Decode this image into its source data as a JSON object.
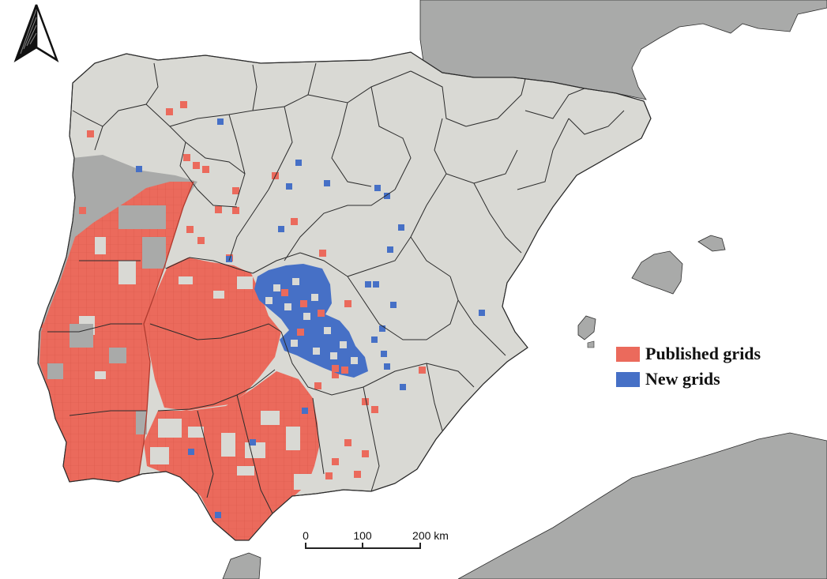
{
  "colors": {
    "sea": "#ffffff",
    "land": "#d9d9d4",
    "foreign_land": "#a9aaa9",
    "border": "#2b2b2b",
    "published": "#eb6a5c",
    "new": "#4670c6",
    "grid_line": "#c9473a"
  },
  "legend": {
    "items": [
      {
        "label": "Published grids",
        "color": "#eb6a5c"
      },
      {
        "label": "New grids",
        "color": "#4670c6"
      }
    ]
  },
  "scale_bar": {
    "labels": [
      "0",
      "100",
      "200 km"
    ]
  },
  "north_arrow": {
    "icon": "north-arrow-icon"
  }
}
